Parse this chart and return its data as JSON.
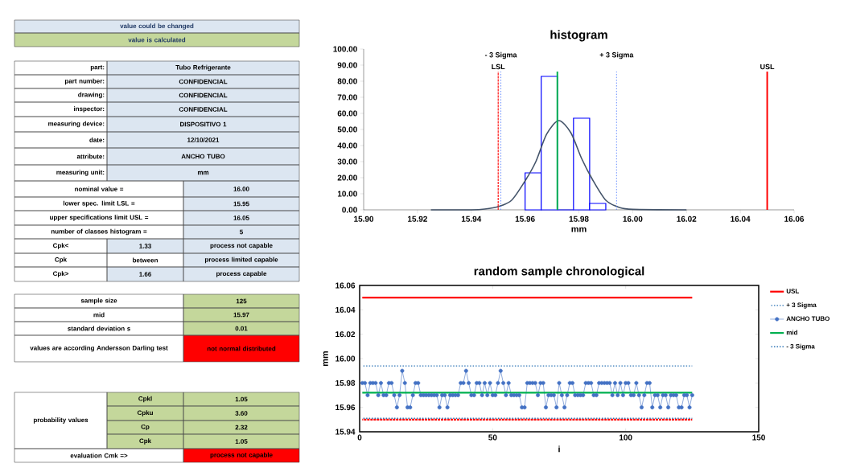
{
  "chart_data": [
    {
      "type": "other",
      "annotations": [
        "value could be changed",
        "value is calculated",
        "part:",
        "Tubo Refrigerante",
        "part number:",
        "CONFIDENCIAL",
        "drawing:",
        "CONFIDENCIAL",
        "inspector:",
        "CONFIDENCIAL",
        "measuring device:",
        "DISPOSITIVO 1",
        "date:",
        "12/10/2021",
        "attribute:",
        "ANCHO TUBO",
        "measuring unit:",
        "mm",
        "nominal value =",
        "16.00",
        "lower spec. limit LSL =",
        "15.95",
        "upper specifications limit USL =",
        "16.05",
        "number of classes histogram =",
        "5",
        "Cpk<",
        "1.33",
        "process not capable",
        "Cpk",
        "between",
        "process limited capable",
        "Cpk>",
        "1.66",
        "process capable",
        "sample size",
        "125",
        "mid",
        "15.97",
        "standard deviation s",
        "0.01",
        "values are according Andersson Darling test",
        "not normal distributed",
        "probability values",
        "Cpkl",
        "1.05",
        "Cpku",
        "3.60",
        "Cp",
        "2.32",
        "Cpk",
        "1.05",
        "evaluation Cmk =>",
        "process not capable"
      ]
    },
    {
      "type": "histogram",
      "title": "histogram",
      "xlabel": "mm",
      "xlim": [
        15.9,
        16.06
      ],
      "ylim": [
        0,
        100
      ],
      "xticks": [
        {
          "value": 15.9,
          "label": "15.90"
        },
        15.92,
        15.94,
        15.96,
        15.98,
        {
          "value": 16.0,
          "label": "16.00"
        },
        16.02,
        16.04,
        16.06
      ],
      "yticks": [
        {
          "value": 0,
          "label": "0.00"
        },
        {
          "value": 10,
          "label": "10.00"
        },
        {
          "value": 20,
          "label": "20.00"
        },
        {
          "value": 30,
          "label": "30.00"
        },
        {
          "value": 40,
          "label": "40.00"
        },
        {
          "value": 50,
          "label": "50.00"
        },
        {
          "value": 60,
          "label": "60.00"
        },
        {
          "value": 70,
          "label": "70.00"
        },
        {
          "value": 80,
          "label": "80.00"
        },
        {
          "value": 90,
          "label": "90.00"
        },
        {
          "value": 100,
          "label": "100.00"
        }
      ],
      "series": [
        {
          "type": "histogram",
          "color": "#0000ff",
          "bins": [
            15.96,
            15.966,
            15.972,
            15.978,
            15.984,
            15.99
          ],
          "values": [
            23,
            83,
            0,
            57,
            4
          ]
        },
        {
          "type": "line",
          "color": "#44546a",
          "x": [
            15.925,
            15.94,
            15.945,
            15.95,
            15.955,
            15.96,
            15.964,
            15.968,
            15.9725,
            15.977,
            15.981,
            15.985,
            15.99,
            15.995,
            16.0,
            16.02
          ],
          "values": [
            0,
            0,
            0.5,
            2,
            6,
            18,
            30,
            47,
            55.5,
            48,
            32,
            19,
            6,
            1.5,
            0.3,
            0
          ]
        }
      ],
      "ref_lines": [
        {
          "axis": "x",
          "value": 15.95,
          "label": "LSL",
          "color": "#ff0000",
          "line_style": "dashed"
        },
        {
          "axis": "x",
          "value": 15.951,
          "label": "- 3 Sigma",
          "color": "#4472ff",
          "line_style": "dotted"
        },
        {
          "axis": "x",
          "value": 15.972,
          "color": "#00b050",
          "line_style": "solid"
        },
        {
          "axis": "x",
          "value": 15.994,
          "label": "+ 3 Sigma",
          "color": "#4472ff",
          "line_style": "dotted"
        },
        {
          "axis": "x",
          "value": 16.05,
          "label": "USL",
          "color": "#ff0000",
          "line_style": "solid"
        }
      ]
    },
    {
      "type": "line",
      "title": "random sample chronological",
      "xlabel": "i",
      "ylabel": "mm",
      "xlim": [
        0,
        150
      ],
      "ylim": [
        15.94,
        16.06
      ],
      "xticks": [
        0,
        50,
        100,
        150
      ],
      "yticks": [
        15.94,
        15.96,
        15.98,
        {
          "value": 16.0,
          "label": "16.00"
        },
        16.02,
        16.04,
        16.06
      ],
      "legend": "right",
      "x": [
        1,
        2,
        3,
        4,
        5,
        6,
        7,
        8,
        9,
        10,
        11,
        12,
        13,
        14,
        15,
        16,
        17,
        18,
        19,
        20,
        21,
        22,
        23,
        24,
        25,
        26,
        27,
        28,
        29,
        30,
        31,
        32,
        33,
        34,
        35,
        36,
        37,
        38,
        39,
        40,
        41,
        42,
        43,
        44,
        45,
        46,
        47,
        48,
        49,
        50,
        51,
        52,
        53,
        54,
        55,
        56,
        57,
        58,
        59,
        60,
        61,
        62,
        63,
        64,
        65,
        66,
        67,
        68,
        69,
        70,
        71,
        72,
        73,
        74,
        75,
        76,
        77,
        78,
        79,
        80,
        81,
        82,
        83,
        84,
        85,
        86,
        87,
        88,
        89,
        90,
        91,
        92,
        93,
        94,
        95,
        96,
        97,
        98,
        99,
        100,
        101,
        102,
        103,
        104,
        105,
        106,
        107,
        108,
        109,
        110,
        111,
        112,
        113,
        114,
        115,
        116,
        117,
        118,
        119,
        120,
        121,
        122,
        123,
        124,
        125
      ],
      "series": [
        {
          "color": "#ff0000",
          "line_style": "dashed",
          "marker": "none",
          "x": [
            1,
            125
          ],
          "values": [
            15.95,
            15.95
          ]
        },
        {
          "name": "USL",
          "color": "#ff0000",
          "line_style": "solid",
          "marker": "none",
          "x": [
            1,
            125
          ],
          "values": [
            16.05,
            16.05
          ]
        },
        {
          "name": "+ 3 Sigma",
          "color": "#2e75b6",
          "line_style": "dotted",
          "marker": "none",
          "x": [
            1,
            125
          ],
          "values": [
            15.994,
            15.994
          ]
        },
        {
          "name": "ANCHO TUBO",
          "color": "#4472c4",
          "line_style": "solid",
          "marker": "circle",
          "values": [
            15.98,
            15.98,
            15.97,
            15.98,
            15.98,
            15.98,
            15.97,
            15.98,
            15.97,
            15.97,
            15.98,
            15.98,
            15.97,
            15.96,
            15.97,
            15.99,
            15.98,
            15.96,
            15.96,
            15.97,
            15.98,
            15.98,
            15.97,
            15.97,
            15.97,
            15.97,
            15.97,
            15.97,
            15.97,
            15.96,
            15.97,
            15.97,
            15.96,
            15.97,
            15.97,
            15.97,
            15.97,
            15.98,
            15.98,
            15.99,
            15.98,
            15.97,
            15.97,
            15.98,
            15.98,
            15.97,
            15.98,
            15.97,
            15.98,
            15.97,
            15.97,
            15.98,
            15.99,
            15.98,
            15.97,
            15.98,
            15.97,
            15.97,
            15.97,
            15.97,
            15.96,
            15.96,
            15.98,
            15.98,
            15.98,
            15.98,
            15.97,
            15.98,
            15.98,
            15.96,
            15.97,
            15.97,
            15.97,
            15.96,
            15.98,
            15.97,
            15.96,
            15.97,
            15.98,
            15.98,
            15.97,
            15.97,
            15.97,
            15.97,
            15.98,
            15.98,
            15.98,
            15.97,
            15.97,
            15.98,
            15.98,
            15.98,
            15.98,
            15.98,
            15.97,
            15.98,
            15.97,
            15.98,
            15.97,
            15.98,
            15.98,
            15.97,
            15.97,
            15.98,
            15.97,
            15.96,
            15.97,
            15.98,
            15.98,
            15.96,
            15.97,
            15.97,
            15.96,
            15.97,
            15.97,
            15.96,
            15.97,
            15.97,
            15.97,
            15.96,
            15.96,
            15.97,
            15.97,
            15.96,
            15.97
          ]
        },
        {
          "name": "mid",
          "color": "#00b050",
          "line_style": "solid",
          "marker": "none",
          "x": [
            1,
            125
          ],
          "values": [
            15.972,
            15.972
          ]
        },
        {
          "name": "- 3 Sigma",
          "color": "#2e75b6",
          "line_style": "dotted",
          "marker": "none",
          "x": [
            1,
            125
          ],
          "values": [
            15.951,
            15.951
          ]
        }
      ]
    }
  ]
}
